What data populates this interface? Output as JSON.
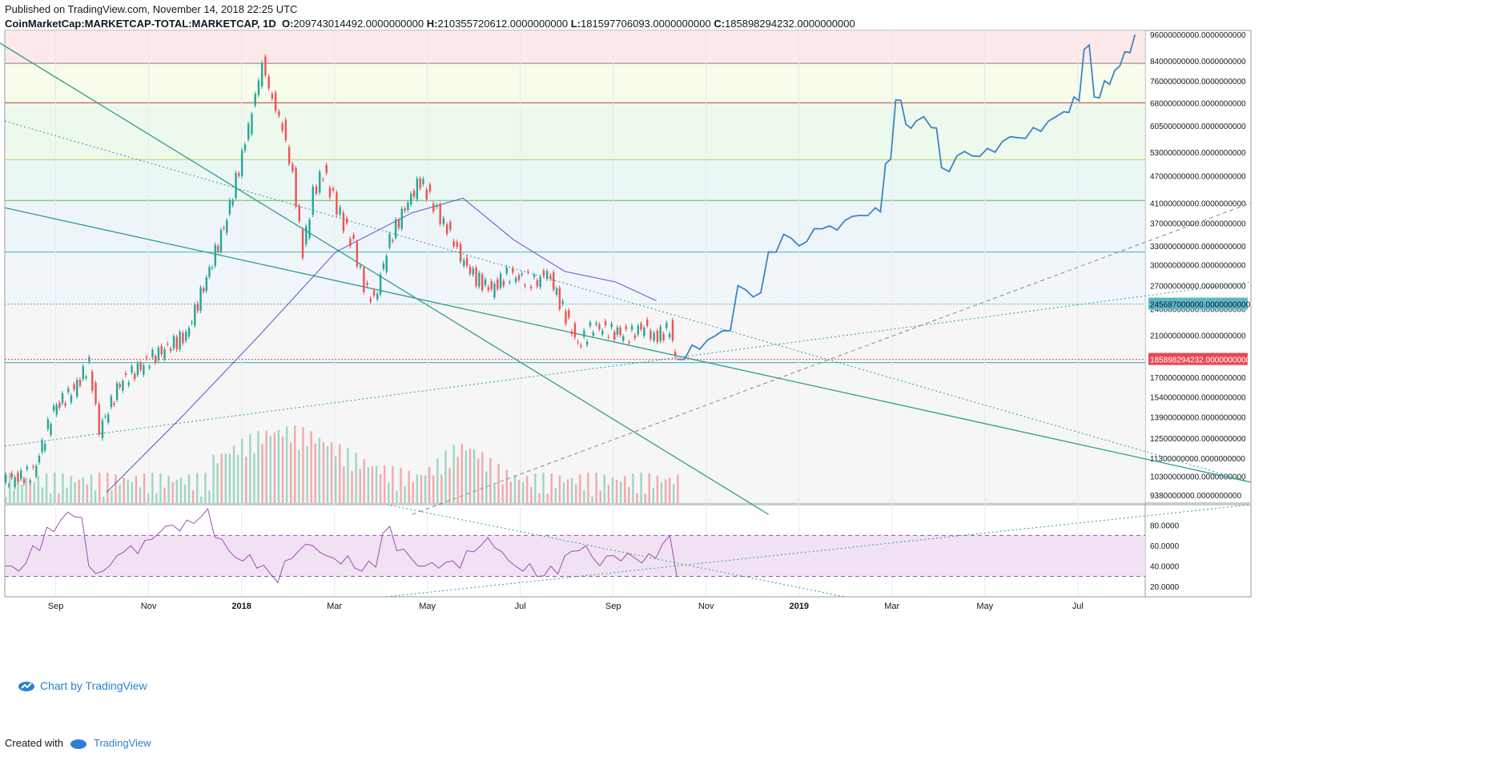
{
  "header": {
    "published": "Published on TradingView.com, November 14, 2018 22:25 UTC",
    "symbol": "CoinMarketCap:MARKETCAP-TOTAL:MARKETCAP, 1D",
    "o_label": "O:",
    "o_value": "209743014492.0000000000",
    "h_label": "H:",
    "h_value": "210355720612.0000000000",
    "l_label": "L:",
    "l_value": "181597706093.0000000000",
    "c_label": "C:",
    "c_value": "185898294232.0000000000"
  },
  "footer": {
    "created_with": "Created with",
    "brand": "TradingView"
  },
  "watermark": "Chart by TradingView",
  "colors": {
    "up": "#26a69a",
    "down": "#ef5350",
    "projection": "#3d85c6",
    "rsi": "#9c4fb0",
    "trendline": "#2e9e8a",
    "ma": "#3f3fbf",
    "last_price_bg": "#e84855",
    "marker_bg": "#5cb8c9"
  },
  "chart_data": {
    "type": "candlestick",
    "scale": "log",
    "x_ticks": [
      "Sep",
      "Nov",
      "2018",
      "Mar",
      "May",
      "Jul",
      "Sep",
      "Nov",
      "2019",
      "Mar",
      "May",
      "Jul"
    ],
    "y_ticks": [
      "96000000000.0000000000",
      "84000000000.0000000000",
      "76000000000.0000000000",
      "68000000000.0000000000",
      "60500000000.0000000000",
      "53000000000.0000000000",
      "47000000000.0000000000",
      "41000000000.0000000000",
      "37000000000.0000000000",
      "33000000000.0000000000",
      "30000000000.0000000000",
      "27000000000.0000000000",
      "24000000000.0000000000",
      "21000000000.0000000000",
      "19000000000.0000000000",
      "17000000000.0000000000",
      "15400000000.0000000000",
      "13900000000.0000000000",
      "12500000000.0000000000",
      "11300000000.0000000000",
      "10300000000.0000000000",
      "9380000000.0000000000"
    ],
    "price_marker": "245687000000.0000000000",
    "last_price": "185898294232.0000000000",
    "horizontal_levels": [
      830,
      680,
      510,
      415,
      320,
      246,
      183
    ],
    "price_path": [
      [
        0,
        100
      ],
      [
        12,
        105
      ],
      [
        20,
        145
      ],
      [
        28,
        160
      ],
      [
        34,
        182
      ],
      [
        38,
        130
      ],
      [
        46,
        165
      ],
      [
        60,
        190
      ],
      [
        72,
        210
      ],
      [
        80,
        280
      ],
      [
        88,
        380
      ],
      [
        94,
        520
      ],
      [
        98,
        650
      ],
      [
        102,
        830
      ],
      [
        106,
        690
      ],
      [
        110,
        600
      ],
      [
        114,
        470
      ],
      [
        118,
        320
      ],
      [
        122,
        430
      ],
      [
        126,
        480
      ],
      [
        130,
        420
      ],
      [
        134,
        370
      ],
      [
        138,
        330
      ],
      [
        142,
        270
      ],
      [
        146,
        250
      ],
      [
        152,
        340
      ],
      [
        158,
        400
      ],
      [
        164,
        460
      ],
      [
        168,
        420
      ],
      [
        172,
        380
      ],
      [
        176,
        350
      ],
      [
        180,
        310
      ],
      [
        186,
        280
      ],
      [
        192,
        265
      ],
      [
        198,
        285
      ],
      [
        204,
        280
      ],
      [
        210,
        275
      ],
      [
        214,
        290
      ],
      [
        220,
        240
      ],
      [
        226,
        200
      ],
      [
        232,
        220
      ],
      [
        238,
        215
      ],
      [
        246,
        210
      ],
      [
        252,
        220
      ],
      [
        256,
        207
      ],
      [
        262,
        218
      ],
      [
        264,
        186
      ]
    ],
    "projection_path": [
      [
        264,
        186
      ],
      [
        270,
        200
      ],
      [
        276,
        205
      ],
      [
        282,
        215
      ],
      [
        288,
        270
      ],
      [
        294,
        255
      ],
      [
        300,
        320
      ],
      [
        306,
        350
      ],
      [
        312,
        330
      ],
      [
        318,
        360
      ],
      [
        324,
        365
      ],
      [
        330,
        375
      ],
      [
        336,
        385
      ],
      [
        342,
        400
      ],
      [
        346,
        500
      ],
      [
        350,
        690
      ],
      [
        354,
        610
      ],
      [
        358,
        620
      ],
      [
        364,
        600
      ],
      [
        368,
        490
      ],
      [
        374,
        520
      ],
      [
        380,
        520
      ],
      [
        386,
        540
      ],
      [
        392,
        560
      ],
      [
        398,
        570
      ],
      [
        404,
        600
      ],
      [
        410,
        620
      ],
      [
        416,
        650
      ],
      [
        420,
        700
      ],
      [
        424,
        890
      ],
      [
        428,
        700
      ],
      [
        432,
        760
      ],
      [
        436,
        800
      ],
      [
        440,
        880
      ],
      [
        444,
        960
      ]
    ],
    "rsi": {
      "ticks": [
        "80.0000",
        "60.0000",
        "40.0000",
        "20.0000"
      ],
      "overbought": 70,
      "oversold": 30,
      "values": [
        40,
        35,
        60,
        78,
        85,
        88,
        40,
        35,
        50,
        60,
        65,
        72,
        80,
        85,
        88,
        68,
        55,
        45,
        38,
        32,
        45,
        55,
        60,
        50,
        42,
        38,
        45,
        72,
        55,
        48,
        40,
        38,
        45,
        55,
        60,
        58,
        45,
        35,
        30,
        40,
        50,
        55,
        48,
        50,
        45,
        48,
        52,
        62,
        30
      ],
      "range": [
        10,
        100
      ]
    }
  }
}
